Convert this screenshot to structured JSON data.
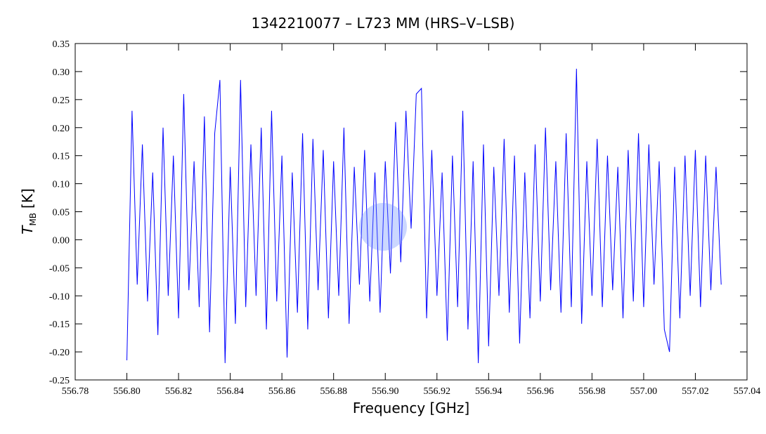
{
  "chart_data": {
    "type": "line",
    "title": "1342210077 – L723 MM (HRS–V–LSB)",
    "xlabel": "Frequency [GHz]",
    "ylabel": {
      "main": "T",
      "sub": "MB",
      "unit": "[K]"
    },
    "xlim": [
      556.78,
      557.04
    ],
    "ylim": [
      -0.25,
      0.35
    ],
    "xticks": [
      {
        "value": 556.78,
        "label": "556.78"
      },
      {
        "value": 556.8,
        "label": "556.80"
      },
      {
        "value": 556.82,
        "label": "556.82"
      },
      {
        "value": 556.84,
        "label": "556.84"
      },
      {
        "value": 556.86,
        "label": "556.86"
      },
      {
        "value": 556.88,
        "label": "556.88"
      },
      {
        "value": 556.9,
        "label": "556.90"
      },
      {
        "value": 556.92,
        "label": "556.92"
      },
      {
        "value": 556.94,
        "label": "556.94"
      },
      {
        "value": 556.96,
        "label": "556.96"
      },
      {
        "value": 556.98,
        "label": "556.98"
      },
      {
        "value": 557.0,
        "label": "557.00"
      },
      {
        "value": 557.02,
        "label": "557.02"
      },
      {
        "value": 557.04,
        "label": "557.04"
      }
    ],
    "yticks": [
      0.35,
      {
        "value": 0.3,
        "label": "0.30"
      },
      0.25,
      {
        "value": 0.2,
        "label": "0.20"
      },
      0.15,
      {
        "value": 0.1,
        "label": "0.10"
      },
      0.05,
      {
        "value": 0,
        "label": "0.00"
      },
      -0.05,
      {
        "value": -0.1,
        "label": "-0.10"
      },
      -0.15,
      {
        "value": -0.2,
        "label": "-0.20"
      },
      -0.25
    ],
    "series": [
      {
        "color": "#0000ff",
        "x": [
          556.8,
          556.802,
          556.804,
          556.806,
          556.808,
          556.81,
          556.812,
          556.814,
          556.816,
          556.818,
          556.82,
          556.822,
          556.824,
          556.826,
          556.828,
          556.83,
          556.832,
          556.834,
          556.836,
          556.838,
          556.84,
          556.842,
          556.844,
          556.846,
          556.848,
          556.85,
          556.852,
          556.854,
          556.856,
          556.858,
          556.86,
          556.862,
          556.864,
          556.866,
          556.868,
          556.87,
          556.872,
          556.874,
          556.876,
          556.878,
          556.88,
          556.882,
          556.884,
          556.886,
          556.888,
          556.89,
          556.892,
          556.894,
          556.896,
          556.898,
          556.9,
          556.902,
          556.904,
          556.906,
          556.908,
          556.91,
          556.912,
          556.914,
          556.916,
          556.918,
          556.92,
          556.922,
          556.924,
          556.926,
          556.928,
          556.93,
          556.932,
          556.934,
          556.936,
          556.938,
          556.94,
          556.942,
          556.944,
          556.946,
          556.948,
          556.95,
          556.952,
          556.954,
          556.956,
          556.958,
          556.96,
          556.962,
          556.964,
          556.966,
          556.968,
          556.97,
          556.972,
          556.974,
          556.976,
          556.978,
          556.98,
          556.982,
          556.984,
          556.986,
          556.988,
          556.99,
          556.992,
          556.994,
          556.996,
          556.998,
          557.0,
          557.002,
          557.004,
          557.006,
          557.008,
          557.01,
          557.012,
          557.014,
          557.016,
          557.018,
          557.02,
          557.022,
          557.024,
          557.026,
          557.028,
          557.03
        ],
        "values": [
          -0.215,
          0.23,
          -0.08,
          0.17,
          -0.11,
          0.12,
          -0.17,
          0.2,
          -0.1,
          0.15,
          -0.14,
          0.26,
          -0.09,
          0.14,
          -0.12,
          0.22,
          -0.165,
          0.19,
          0.285,
          -0.22,
          0.13,
          -0.15,
          0.285,
          -0.12,
          0.17,
          -0.1,
          0.2,
          -0.16,
          0.23,
          -0.11,
          0.15,
          -0.21,
          0.12,
          -0.13,
          0.19,
          -0.16,
          0.18,
          -0.09,
          0.16,
          -0.14,
          0.14,
          -0.1,
          0.2,
          -0.15,
          0.13,
          -0.08,
          0.16,
          -0.11,
          0.12,
          -0.13,
          0.14,
          -0.06,
          0.21,
          -0.04,
          0.23,
          0.02,
          0.26,
          0.27,
          -0.14,
          0.16,
          -0.1,
          0.12,
          -0.18,
          0.15,
          -0.12,
          0.23,
          -0.16,
          0.14,
          -0.22,
          0.17,
          -0.19,
          0.13,
          -0.1,
          0.18,
          -0.13,
          0.15,
          -0.185,
          0.12,
          -0.14,
          0.17,
          -0.11,
          0.2,
          -0.09,
          0.14,
          -0.13,
          0.19,
          -0.12,
          0.305,
          -0.15,
          0.14,
          -0.1,
          0.18,
          -0.12,
          0.15,
          -0.09,
          0.13,
          -0.14,
          0.16,
          -0.11,
          0.19,
          -0.12,
          0.17,
          -0.08,
          0.14,
          -0.16,
          -0.2,
          0.13,
          -0.14,
          0.15,
          -0.1,
          0.16,
          -0.12,
          0.15,
          -0.09,
          0.13,
          -0.08
        ]
      }
    ]
  }
}
